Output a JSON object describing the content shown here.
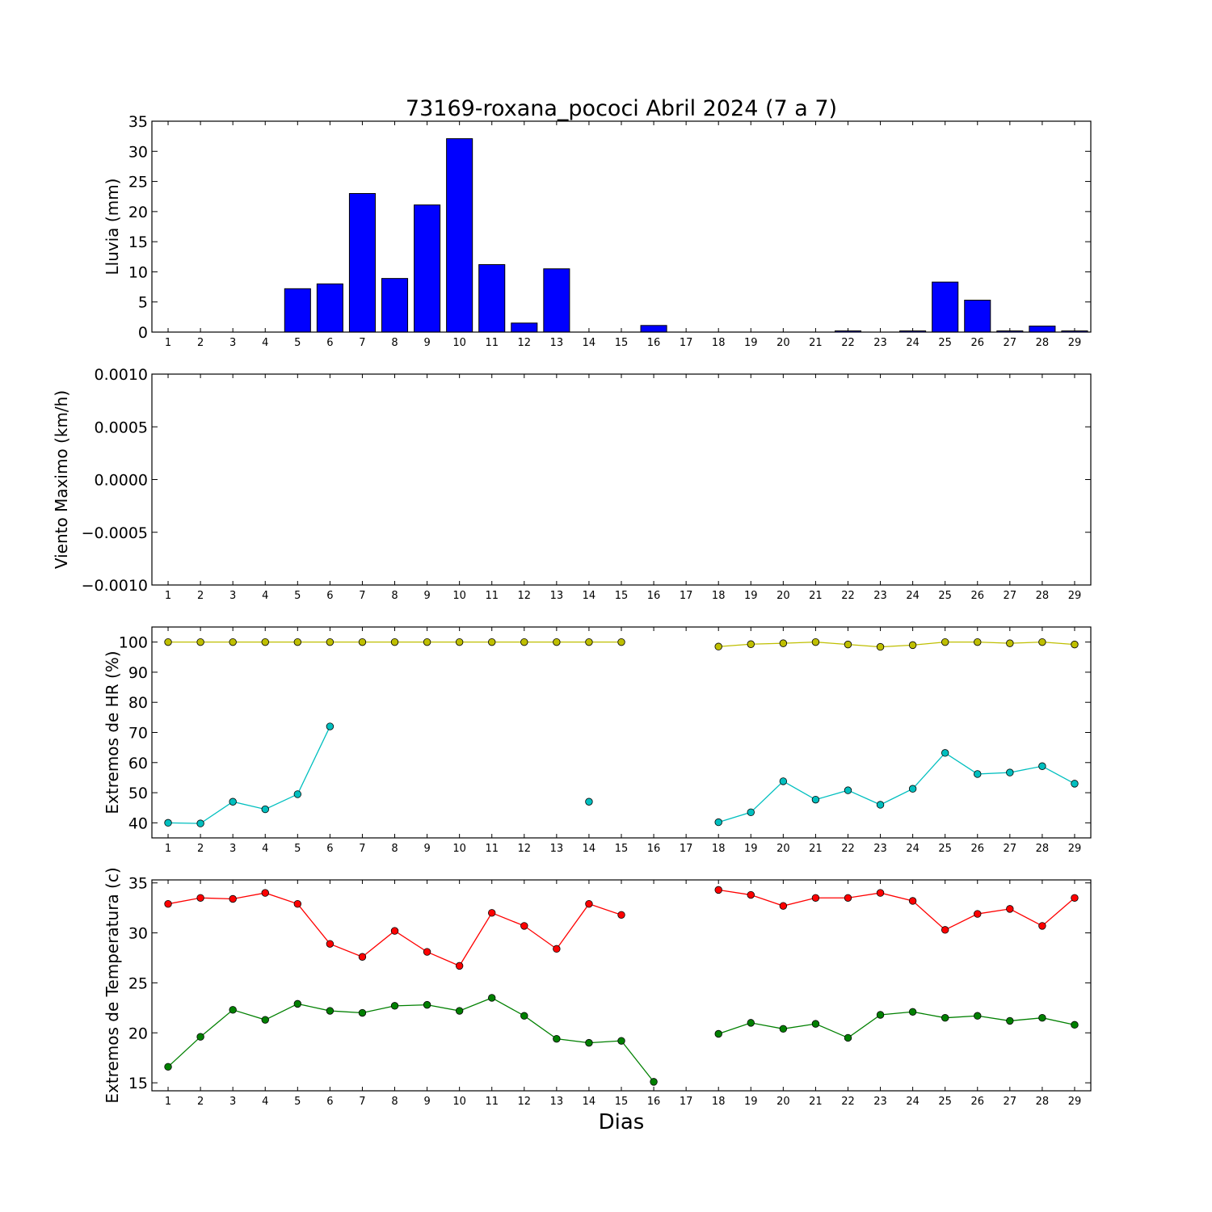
{
  "title": "73169-roxana_pococi Abril 2024  (7 a 7)",
  "xlabel": "Dias",
  "days": [
    "1",
    "2",
    "3",
    "4",
    "5",
    "6",
    "7",
    "8",
    "9",
    "10",
    "11",
    "12",
    "13",
    "14",
    "15",
    "16",
    "17",
    "18",
    "19",
    "20",
    "21",
    "22",
    "23",
    "24",
    "25",
    "26",
    "27",
    "28",
    "29"
  ],
  "chart_data": [
    {
      "type": "bar",
      "ylabel": "Lluvia (mm)",
      "ylim": [
        0,
        35
      ],
      "yticks": [
        0,
        5,
        10,
        15,
        20,
        25,
        30,
        35
      ],
      "ytick_labels": [
        "0",
        "5",
        "10",
        "15",
        "20",
        "25",
        "30",
        "35"
      ],
      "color": "#0000ff",
      "x": [
        1,
        2,
        3,
        4,
        5,
        6,
        7,
        8,
        9,
        10,
        11,
        12,
        13,
        14,
        15,
        16,
        17,
        18,
        19,
        20,
        21,
        22,
        23,
        24,
        25,
        26,
        27,
        28,
        29
      ],
      "values": [
        0,
        0,
        0,
        0,
        7.2,
        8.0,
        23.0,
        8.9,
        21.1,
        32.1,
        11.2,
        1.5,
        10.5,
        0,
        0,
        1.1,
        0,
        0,
        0,
        0,
        0,
        0.2,
        0,
        0.2,
        8.3,
        5.3,
        0.2,
        1.0,
        0.2
      ]
    },
    {
      "type": "line",
      "ylabel": "Viento Maximo (km/h)",
      "ylim": [
        -0.001,
        0.001
      ],
      "yticks": [
        -0.001,
        -0.0005,
        0,
        0.0005,
        0.001
      ],
      "ytick_labels": [
        "−0.0010",
        "−0.0005",
        "0.0000",
        "0.0005",
        "0.0010"
      ],
      "series": []
    },
    {
      "type": "line",
      "ylabel": "Extremos de HR (%)",
      "ylim": [
        35,
        105
      ],
      "yticks": [
        40,
        50,
        60,
        70,
        80,
        90,
        100
      ],
      "ytick_labels": [
        "40",
        "50",
        "60",
        "70",
        "80",
        "90",
        "100"
      ],
      "series": [
        {
          "color": "#bfbf00",
          "x": [
            1,
            2,
            3,
            4,
            5,
            6,
            7,
            8,
            9,
            10,
            11,
            12,
            13,
            14,
            15,
            16,
            17,
            18,
            19,
            20,
            21,
            22,
            23,
            24,
            25,
            26,
            27,
            28,
            29
          ],
          "values": [
            100,
            100,
            100,
            100,
            100,
            100,
            100,
            100,
            100,
            100,
            100,
            100,
            100,
            100,
            100,
            null,
            null,
            98.5,
            99.3,
            99.6,
            100,
            99.2,
            98.4,
            99,
            100,
            100,
            99.6,
            100,
            99.2
          ]
        },
        {
          "color": "#00bfbf",
          "x": [
            1,
            2,
            3,
            4,
            5,
            6,
            7,
            8,
            9,
            10,
            11,
            12,
            13,
            14,
            15,
            16,
            17,
            18,
            19,
            20,
            21,
            22,
            23,
            24,
            25,
            26,
            27,
            28,
            29
          ],
          "values": [
            40,
            39.8,
            47,
            44.5,
            49.5,
            72,
            null,
            null,
            null,
            null,
            null,
            null,
            null,
            47,
            null,
            null,
            null,
            40.2,
            43.5,
            53.8,
            47.7,
            50.8,
            46,
            51.3,
            63.2,
            56.2,
            56.7,
            58.8,
            53
          ]
        }
      ]
    },
    {
      "type": "line",
      "ylabel": "Extremos de Temperatura (c)",
      "ylim": [
        14.2,
        35.3
      ],
      "yticks": [
        15,
        20,
        25,
        30,
        35
      ],
      "ytick_labels": [
        "15",
        "20",
        "25",
        "30",
        "35"
      ],
      "series": [
        {
          "color": "#ff0000",
          "x": [
            1,
            2,
            3,
            4,
            5,
            6,
            7,
            8,
            9,
            10,
            11,
            12,
            13,
            14,
            15,
            16,
            17,
            18,
            19,
            20,
            21,
            22,
            23,
            24,
            25,
            26,
            27,
            28,
            29
          ],
          "values": [
            32.9,
            33.5,
            33.4,
            34,
            32.9,
            28.9,
            27.6,
            30.2,
            28.1,
            26.7,
            32,
            30.7,
            28.4,
            32.9,
            31.8,
            null,
            null,
            34.3,
            33.8,
            32.7,
            33.5,
            33.5,
            34,
            33.2,
            30.3,
            31.9,
            32.4,
            30.7,
            33.5
          ]
        },
        {
          "color": "#008000",
          "x": [
            1,
            2,
            3,
            4,
            5,
            6,
            7,
            8,
            9,
            10,
            11,
            12,
            13,
            14,
            15,
            16,
            17,
            18,
            19,
            20,
            21,
            22,
            23,
            24,
            25,
            26,
            27,
            28,
            29
          ],
          "values": [
            16.6,
            19.6,
            22.3,
            21.3,
            22.9,
            22.2,
            22,
            22.7,
            22.8,
            22.2,
            23.5,
            21.7,
            19.4,
            19,
            19.2,
            15.1,
            null,
            19.9,
            21,
            20.4,
            20.9,
            19.5,
            21.8,
            22.1,
            21.5,
            21.7,
            21.2,
            21.5,
            20.8
          ]
        }
      ]
    }
  ]
}
